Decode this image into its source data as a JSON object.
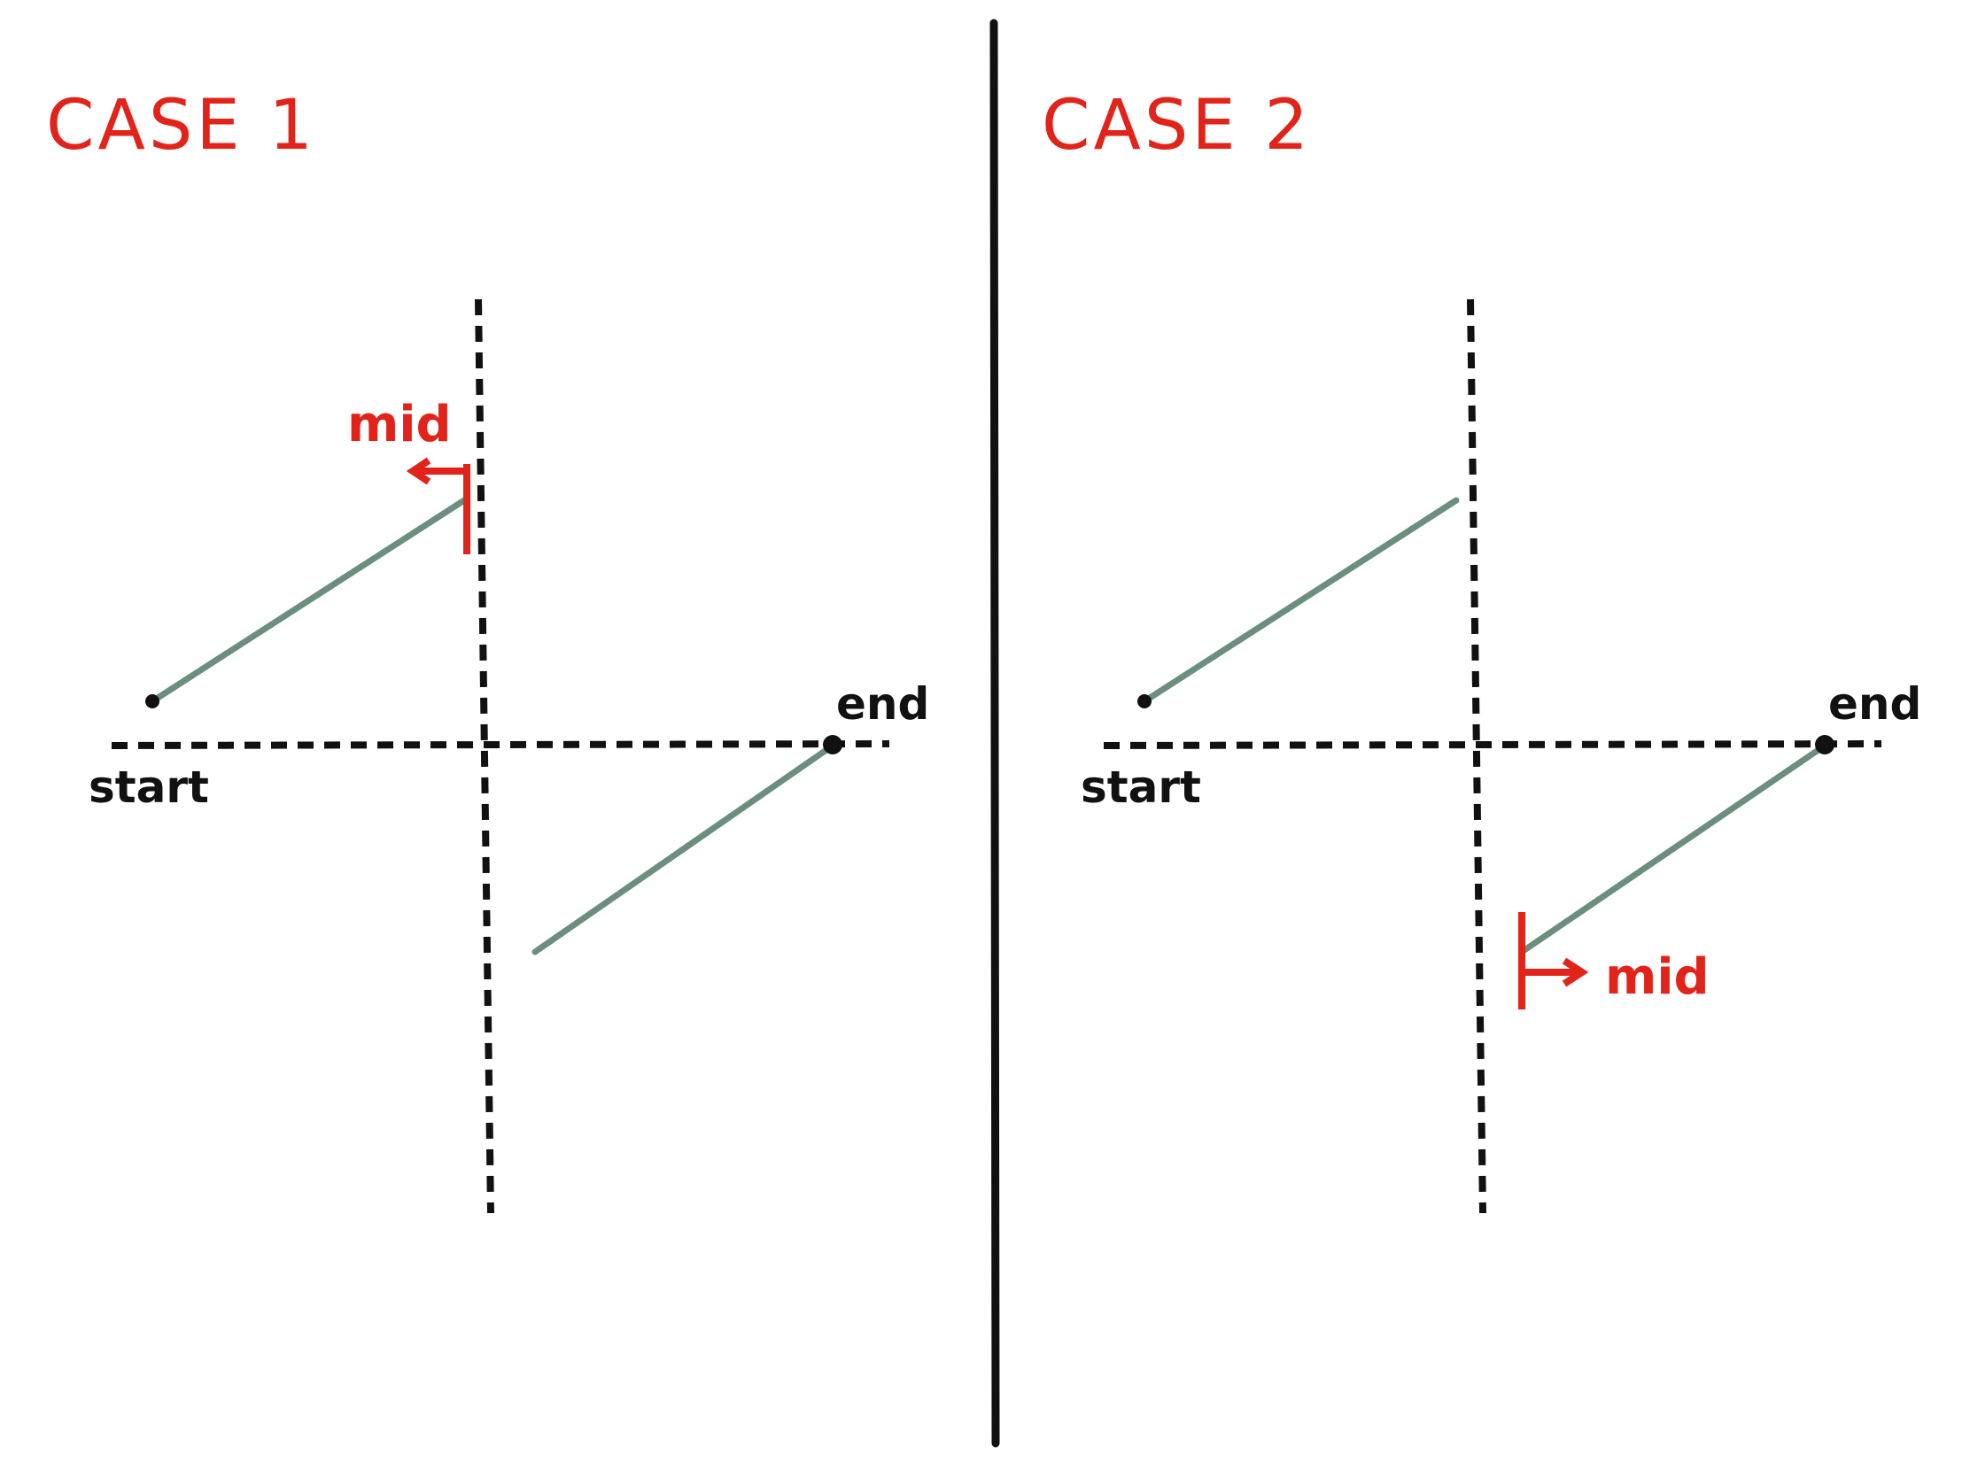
{
  "colors": {
    "accent": "#e2231a",
    "segment": "#6b8f7f",
    "ink": "#111111"
  },
  "panels": [
    {
      "title": "CASE 1",
      "start_label": "start",
      "end_label": "end",
      "mid_label": "mid"
    },
    {
      "title": "CASE 2",
      "start_label": "start",
      "end_label": "end",
      "mid_label": "mid"
    }
  ]
}
